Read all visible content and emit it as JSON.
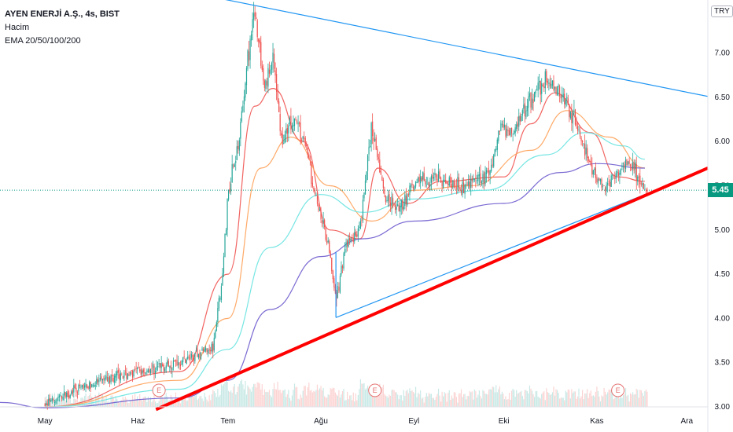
{
  "legend": {
    "title": "AYEN ENERJİ A.Ş., 4s, BIST",
    "volume": "Hacim",
    "ema": "EMA 20/50/100/200"
  },
  "currency_badge": "TRY",
  "current_price_label": "5.45",
  "earnings_label": "E",
  "colors": {
    "up": "#26a69a",
    "down": "#ef5350",
    "ema20": "#ef5350",
    "ema50": "#ffa057",
    "ema100": "#66e3e0",
    "ema200": "#6a5acd",
    "trendline": "#2196f3",
    "support_line": "#ff0000",
    "current_price": "#089981"
  },
  "chart_data": {
    "type": "candlestick",
    "title": "AYEN ENERJİ A.Ş., 4s, BIST",
    "interval": "4s",
    "currency": "TRY",
    "current_price": 5.45,
    "y_range": [
      3.0,
      7.6
    ],
    "y_ticks": [
      "3.00",
      "3.50",
      "4.00",
      "4.50",
      "5.00",
      "5.50",
      "6.00",
      "6.50",
      "7.00"
    ],
    "x_range": [
      "2023-04-16",
      "2023-12-08"
    ],
    "x_ticks": [
      {
        "label": "May",
        "date": "2023-05-01"
      },
      {
        "label": "Haz",
        "date": "2023-06-01"
      },
      {
        "label": "Tem",
        "date": "2023-07-01"
      },
      {
        "label": "Ağu",
        "date": "2023-08-01"
      },
      {
        "label": "Eyl",
        "date": "2023-09-01"
      },
      {
        "label": "Eki",
        "date": "2023-10-01"
      },
      {
        "label": "Kas",
        "date": "2023-11-01"
      },
      {
        "label": "Ara",
        "date": "2023-12-01"
      }
    ],
    "price_path": [
      {
        "date": "2023-04-16",
        "price": 3.01
      },
      {
        "date": "2023-05-01",
        "price": 3.02
      },
      {
        "date": "2023-05-12",
        "price": 3.2
      },
      {
        "date": "2023-05-25",
        "price": 3.35
      },
      {
        "date": "2023-06-08",
        "price": 3.45
      },
      {
        "date": "2023-06-18",
        "price": 3.55
      },
      {
        "date": "2023-06-26",
        "price": 3.7
      },
      {
        "date": "2023-06-29",
        "price": 4.4
      },
      {
        "date": "2023-07-01",
        "price": 5.4
      },
      {
        "date": "2023-07-05",
        "price": 6.1
      },
      {
        "date": "2023-07-07",
        "price": 6.8
      },
      {
        "date": "2023-07-10",
        "price": 7.5
      },
      {
        "date": "2023-07-13",
        "price": 6.6
      },
      {
        "date": "2023-07-16",
        "price": 6.9
      },
      {
        "date": "2023-07-19",
        "price": 6.0
      },
      {
        "date": "2023-07-23",
        "price": 6.3
      },
      {
        "date": "2023-07-27",
        "price": 5.9
      },
      {
        "date": "2023-07-31",
        "price": 5.3
      },
      {
        "date": "2023-08-04",
        "price": 4.7
      },
      {
        "date": "2023-08-06",
        "price": 4.2
      },
      {
        "date": "2023-08-09",
        "price": 4.8
      },
      {
        "date": "2023-08-14",
        "price": 5.0
      },
      {
        "date": "2023-08-18",
        "price": 6.2
      },
      {
        "date": "2023-08-22",
        "price": 5.4
      },
      {
        "date": "2023-08-27",
        "price": 5.2
      },
      {
        "date": "2023-09-02",
        "price": 5.6
      },
      {
        "date": "2023-09-10",
        "price": 5.55
      },
      {
        "date": "2023-09-18",
        "price": 5.5
      },
      {
        "date": "2023-09-26",
        "price": 5.6
      },
      {
        "date": "2023-09-30",
        "price": 6.2
      },
      {
        "date": "2023-10-04",
        "price": 6.1
      },
      {
        "date": "2023-10-10",
        "price": 6.5
      },
      {
        "date": "2023-10-15",
        "price": 6.7
      },
      {
        "date": "2023-10-20",
        "price": 6.55
      },
      {
        "date": "2023-10-25",
        "price": 6.2
      },
      {
        "date": "2023-10-30",
        "price": 5.7
      },
      {
        "date": "2023-11-03",
        "price": 5.5
      },
      {
        "date": "2023-11-08",
        "price": 5.65
      },
      {
        "date": "2023-11-12",
        "price": 5.8
      },
      {
        "date": "2023-11-17",
        "price": 5.45
      }
    ],
    "ema_series": [
      {
        "name": "EMA 20",
        "points": [
          {
            "date": "2023-05-01",
            "value": 3.0
          },
          {
            "date": "2023-06-15",
            "value": 3.4
          },
          {
            "date": "2023-07-01",
            "value": 4.5
          },
          {
            "date": "2023-07-10",
            "value": 6.4
          },
          {
            "date": "2023-07-16",
            "value": 6.6
          },
          {
            "date": "2023-07-26",
            "value": 6.0
          },
          {
            "date": "2023-08-04",
            "value": 5.0
          },
          {
            "date": "2023-08-14",
            "value": 4.9
          },
          {
            "date": "2023-08-20",
            "value": 5.7
          },
          {
            "date": "2023-08-30",
            "value": 5.3
          },
          {
            "date": "2023-09-10",
            "value": 5.55
          },
          {
            "date": "2023-10-01",
            "value": 5.6
          },
          {
            "date": "2023-10-10",
            "value": 6.2
          },
          {
            "date": "2023-10-18",
            "value": 6.55
          },
          {
            "date": "2023-10-30",
            "value": 6.1
          },
          {
            "date": "2023-11-08",
            "value": 5.6
          },
          {
            "date": "2023-11-17",
            "value": 5.55
          }
        ]
      },
      {
        "name": "EMA 50",
        "points": [
          {
            "date": "2023-05-01",
            "value": 3.0
          },
          {
            "date": "2023-06-15",
            "value": 3.3
          },
          {
            "date": "2023-07-01",
            "value": 4.0
          },
          {
            "date": "2023-07-12",
            "value": 5.7
          },
          {
            "date": "2023-07-22",
            "value": 6.05
          },
          {
            "date": "2023-08-04",
            "value": 5.5
          },
          {
            "date": "2023-08-18",
            "value": 5.1
          },
          {
            "date": "2023-09-01",
            "value": 5.45
          },
          {
            "date": "2023-09-20",
            "value": 5.5
          },
          {
            "date": "2023-10-10",
            "value": 5.9
          },
          {
            "date": "2023-10-22",
            "value": 6.35
          },
          {
            "date": "2023-11-05",
            "value": 6.05
          },
          {
            "date": "2023-11-17",
            "value": 5.7
          }
        ]
      },
      {
        "name": "EMA 100",
        "points": [
          {
            "date": "2023-05-01",
            "value": 3.0
          },
          {
            "date": "2023-06-15",
            "value": 3.2
          },
          {
            "date": "2023-07-01",
            "value": 3.65
          },
          {
            "date": "2023-07-15",
            "value": 4.8
          },
          {
            "date": "2023-08-01",
            "value": 5.4
          },
          {
            "date": "2023-08-15",
            "value": 5.2
          },
          {
            "date": "2023-09-01",
            "value": 5.35
          },
          {
            "date": "2023-09-25",
            "value": 5.45
          },
          {
            "date": "2023-10-15",
            "value": 5.85
          },
          {
            "date": "2023-10-28",
            "value": 6.1
          },
          {
            "date": "2023-11-10",
            "value": 5.95
          },
          {
            "date": "2023-11-17",
            "value": 5.8
          }
        ]
      },
      {
        "name": "EMA 200",
        "points": [
          {
            "date": "2023-04-16",
            "value": 3.05
          },
          {
            "date": "2023-05-01",
            "value": 2.99
          },
          {
            "date": "2023-06-15",
            "value": 3.1
          },
          {
            "date": "2023-07-01",
            "value": 3.3
          },
          {
            "date": "2023-07-15",
            "value": 4.1
          },
          {
            "date": "2023-08-01",
            "value": 4.7
          },
          {
            "date": "2023-08-15",
            "value": 4.9
          },
          {
            "date": "2023-09-01",
            "value": 5.1
          },
          {
            "date": "2023-10-01",
            "value": 5.3
          },
          {
            "date": "2023-10-20",
            "value": 5.65
          },
          {
            "date": "2023-11-01",
            "value": 5.75
          },
          {
            "date": "2023-11-17",
            "value": 5.7
          }
        ]
      }
    ],
    "trendlines": [
      {
        "name": "upper-trendline",
        "color": "#2196f3",
        "points": [
          {
            "date": "2023-06-25",
            "value": 7.64
          },
          {
            "date": "2023-12-08",
            "value": 6.51
          }
        ]
      },
      {
        "name": "lower-trendline",
        "color": "#2196f3",
        "points": [
          {
            "date": "2023-08-06",
            "value": 4.01
          },
          {
            "date": "2023-11-17",
            "value": 5.4
          }
        ]
      },
      {
        "name": "support-line",
        "color": "#ff0000",
        "points": [
          {
            "date": "2023-06-07",
            "value": 2.97
          },
          {
            "date": "2023-12-08",
            "value": 5.7
          }
        ]
      }
    ],
    "earnings_markers": [
      "2023-06-08",
      "2023-08-19",
      "2023-11-08"
    ],
    "grid": false,
    "legend_position": "top-left"
  }
}
